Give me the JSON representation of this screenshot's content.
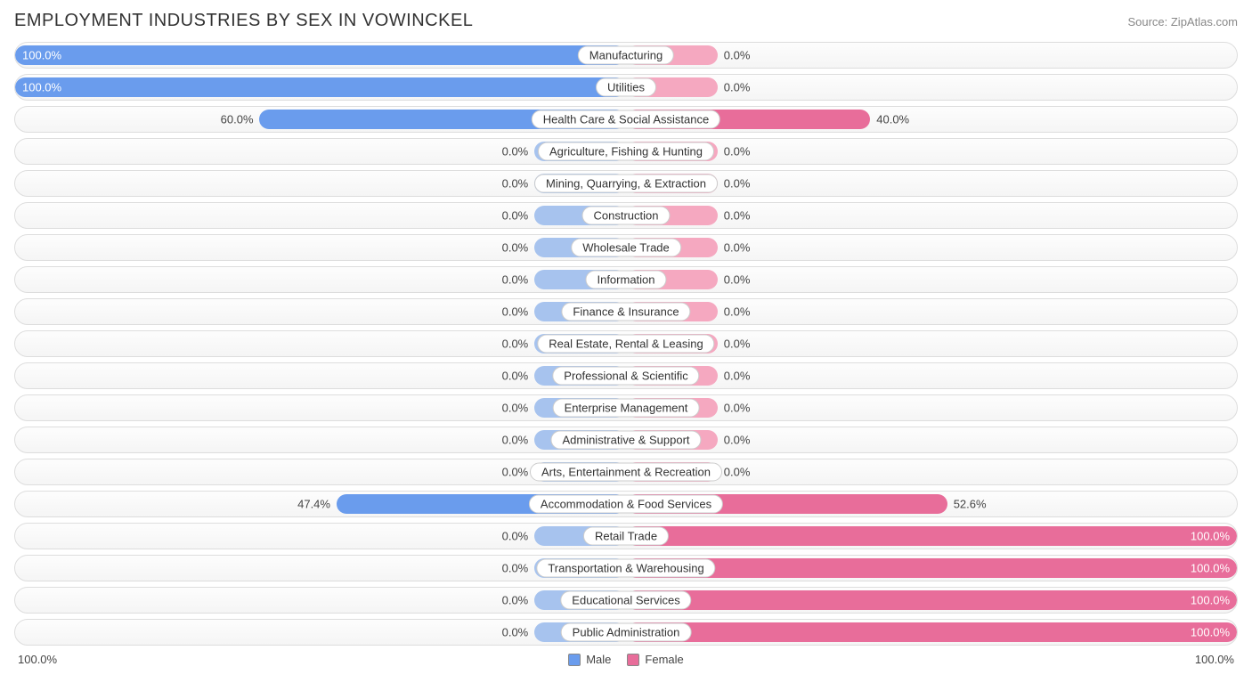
{
  "title": "EMPLOYMENT INDUSTRIES BY SEX IN VOWINCKEL",
  "source": "Source: ZipAtlas.com",
  "colors": {
    "male_strong": "#6a9ced",
    "male_weak": "#a7c3ee",
    "female_strong": "#e86d9a",
    "female_weak": "#f5a8c0",
    "row_border": "#dddddd",
    "text_dark": "#444444",
    "text_light": "#ffffff"
  },
  "axis": {
    "left": "100.0%",
    "right": "100.0%"
  },
  "legend": {
    "male": "Male",
    "female": "Female"
  },
  "default_bar_pct": 15,
  "rows": [
    {
      "label": "Manufacturing",
      "male": 100.0,
      "female": 0.0
    },
    {
      "label": "Utilities",
      "male": 100.0,
      "female": 0.0
    },
    {
      "label": "Health Care & Social Assistance",
      "male": 60.0,
      "female": 40.0
    },
    {
      "label": "Agriculture, Fishing & Hunting",
      "male": 0.0,
      "female": 0.0
    },
    {
      "label": "Mining, Quarrying, & Extraction",
      "male": 0.0,
      "female": 0.0
    },
    {
      "label": "Construction",
      "male": 0.0,
      "female": 0.0
    },
    {
      "label": "Wholesale Trade",
      "male": 0.0,
      "female": 0.0
    },
    {
      "label": "Information",
      "male": 0.0,
      "female": 0.0
    },
    {
      "label": "Finance & Insurance",
      "male": 0.0,
      "female": 0.0
    },
    {
      "label": "Real Estate, Rental & Leasing",
      "male": 0.0,
      "female": 0.0
    },
    {
      "label": "Professional & Scientific",
      "male": 0.0,
      "female": 0.0
    },
    {
      "label": "Enterprise Management",
      "male": 0.0,
      "female": 0.0
    },
    {
      "label": "Administrative & Support",
      "male": 0.0,
      "female": 0.0
    },
    {
      "label": "Arts, Entertainment & Recreation",
      "male": 0.0,
      "female": 0.0
    },
    {
      "label": "Accommodation & Food Services",
      "male": 47.4,
      "female": 52.6
    },
    {
      "label": "Retail Trade",
      "male": 0.0,
      "female": 100.0
    },
    {
      "label": "Transportation & Warehousing",
      "male": 0.0,
      "female": 100.0
    },
    {
      "label": "Educational Services",
      "male": 0.0,
      "female": 100.0
    },
    {
      "label": "Public Administration",
      "male": 0.0,
      "female": 100.0
    }
  ]
}
